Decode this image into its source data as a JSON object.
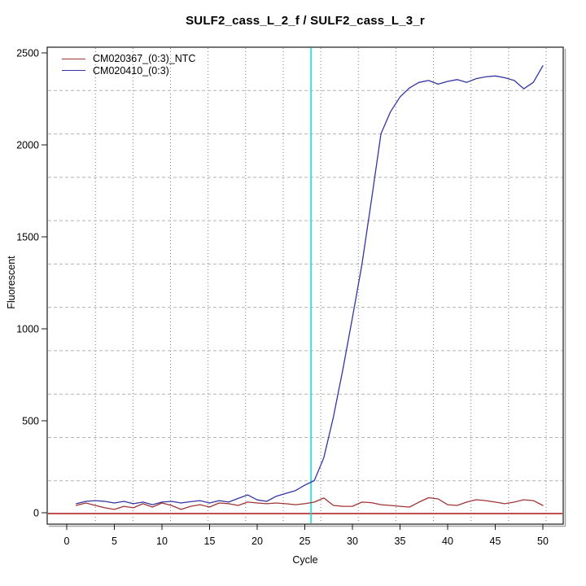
{
  "chart_data": {
    "type": "line",
    "title": "SULF2_cass_L_2_f / SULF2_cass_L_3_r",
    "xlabel": "Cycle",
    "ylabel": "Fluorescent",
    "xlim": [
      0,
      50
    ],
    "ylim": [
      0,
      2500
    ],
    "x_ticks": [
      0,
      5,
      10,
      15,
      20,
      25,
      30,
      35,
      40,
      45,
      50
    ],
    "y_ticks": [
      0,
      500,
      1000,
      1500,
      2000,
      2500
    ],
    "grid": true,
    "legend_position": "top-left",
    "cycles": [
      1,
      2,
      3,
      4,
      5,
      6,
      7,
      8,
      9,
      10,
      11,
      12,
      13,
      14,
      15,
      16,
      17,
      18,
      19,
      20,
      21,
      22,
      23,
      24,
      25,
      26,
      27,
      28,
      29,
      30,
      31,
      32,
      33,
      34,
      35,
      36,
      37,
      38,
      39,
      40,
      41,
      42,
      43,
      44,
      45,
      46,
      47,
      48,
      49,
      50
    ],
    "series": [
      {
        "name": "CM020367_(0:3)_NTC",
        "color": "#A03434",
        "values": [
          40,
          53,
          40,
          27,
          18,
          35,
          27,
          49,
          31,
          53,
          40,
          18,
          35,
          44,
          31,
          53,
          49,
          40,
          58,
          53,
          49,
          53,
          49,
          44,
          49,
          58,
          80,
          40,
          35,
          35,
          58,
          55,
          44,
          40,
          35,
          31,
          58,
          82,
          75,
          44,
          40,
          58,
          71,
          66,
          58,
          49,
          58,
          71,
          66,
          40
        ]
      },
      {
        "name": "CM020410_(0:3)",
        "color": "#3434A4",
        "values": [
          49,
          62,
          66,
          62,
          53,
          62,
          49,
          58,
          44,
          58,
          62,
          53,
          60,
          66,
          53,
          66,
          58,
          78,
          97,
          70,
          62,
          90,
          105,
          120,
          150,
          175,
          300,
          520,
          780,
          1060,
          1350,
          1700,
          2060,
          2180,
          2260,
          2310,
          2340,
          2350,
          2330,
          2345,
          2355,
          2340,
          2360,
          2370,
          2375,
          2365,
          2350,
          2305,
          2340,
          2430
        ]
      }
    ],
    "threshold_line": {
      "value": 0,
      "color": "#C05050"
    },
    "ct_marker_line": {
      "cycle": 25.65,
      "color": "#00E0E8"
    },
    "grid_colors": {
      "vertical": "#7a7a7a",
      "horizontal": "#b4b4b4"
    },
    "box_color": "#1a1a1a"
  }
}
